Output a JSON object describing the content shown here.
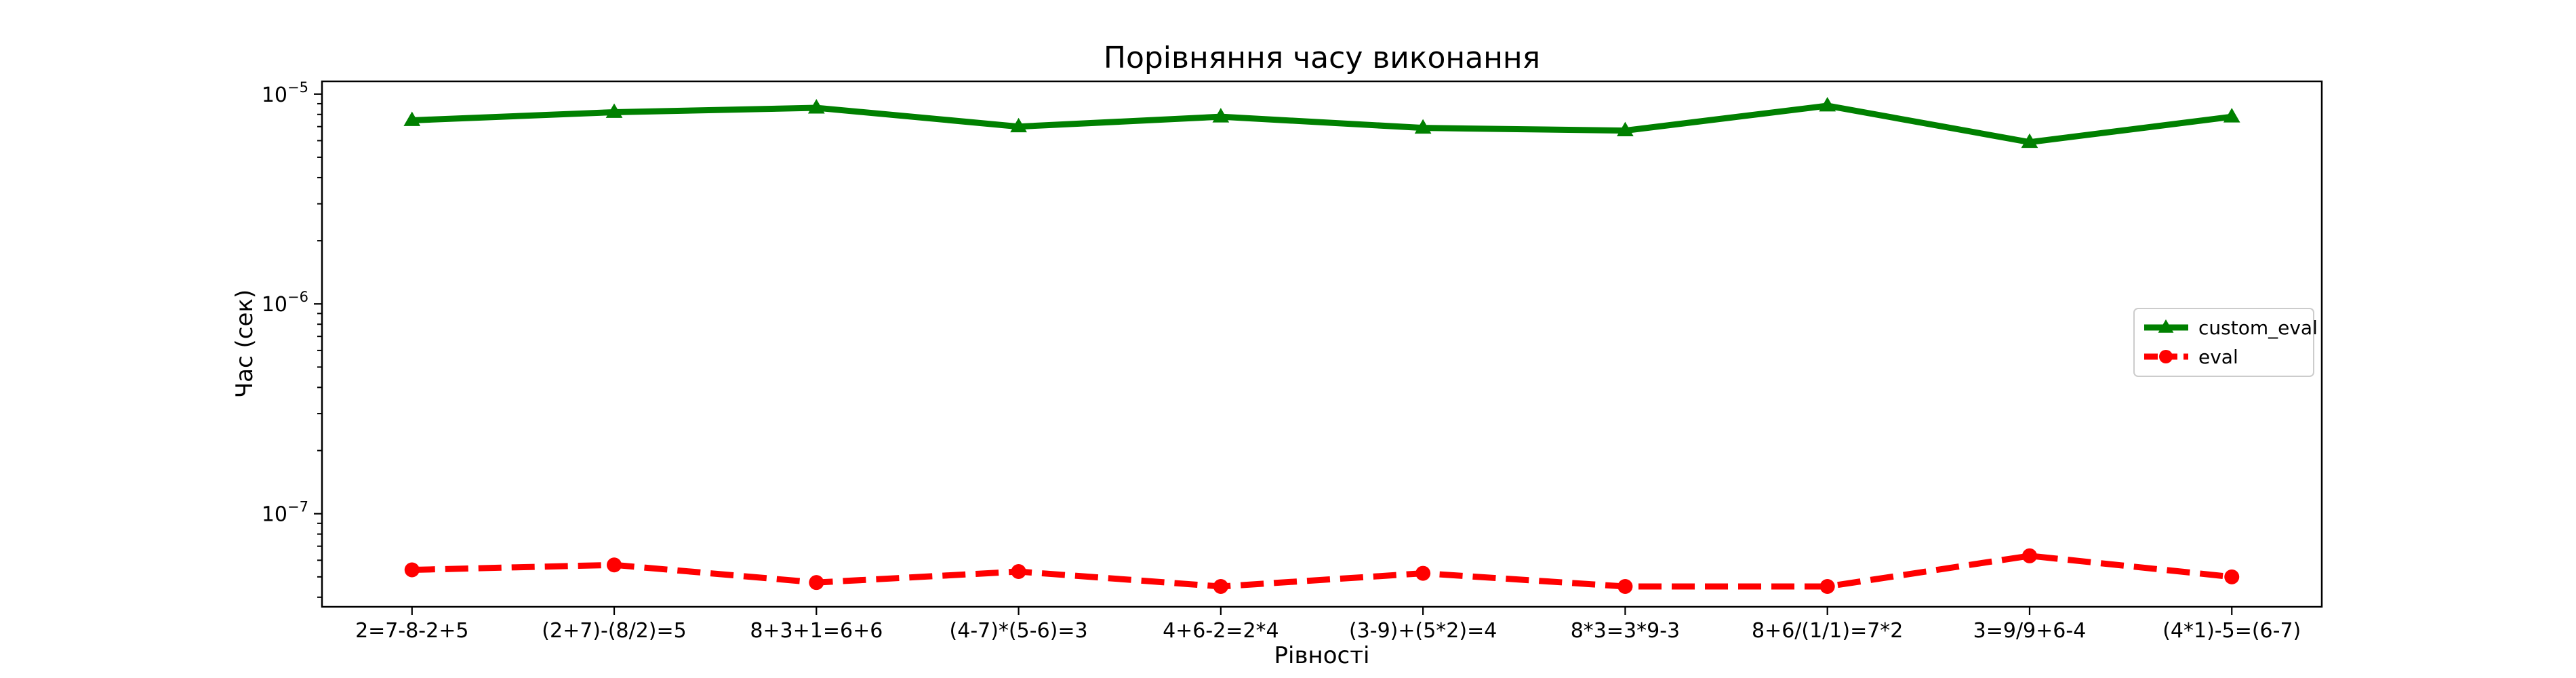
{
  "chart_data": {
    "type": "line",
    "title": "Порівняння часу виконання",
    "xlabel": "Рівності",
    "ylabel": "Час (сек)",
    "yscale": "log",
    "ylim": [
      3.6e-08,
      1.15e-05
    ],
    "yticks": [
      {
        "value": 1e-07,
        "base": "10",
        "exp": "−7"
      },
      {
        "value": 1e-06,
        "base": "10",
        "exp": "−6"
      },
      {
        "value": 1e-05,
        "base": "10",
        "exp": "−5"
      }
    ],
    "categories": [
      "2=7-8-2+5",
      "(2+7)-(8/2)=5",
      "8+3+1=6+6",
      "(4-7)*(5-6)=3",
      "4+6-2=2*4",
      "(3-9)+(5*2)=4",
      "8*3=3*9-3",
      "8+6/(1/1)=7*2",
      "3=9/9+6-4",
      "(4*1)-5=(6-7)"
    ],
    "series": [
      {
        "name": "custom_eval",
        "color": "#008000",
        "marker": "triangle",
        "linestyle": "solid",
        "values": [
          7.5e-06,
          8.2e-06,
          8.6e-06,
          7e-06,
          7.8e-06,
          6.9e-06,
          6.7e-06,
          8.8e-06,
          5.9e-06,
          7.8e-06
        ]
      },
      {
        "name": "eval",
        "color": "#ff0000",
        "marker": "circle",
        "linestyle": "dashed",
        "values": [
          5.4e-08,
          5.7e-08,
          4.7e-08,
          5.3e-08,
          4.5e-08,
          5.2e-08,
          4.5e-08,
          4.5e-08,
          6.3e-08,
          5e-08
        ]
      }
    ],
    "grid": false,
    "legend_position": "center-right"
  }
}
